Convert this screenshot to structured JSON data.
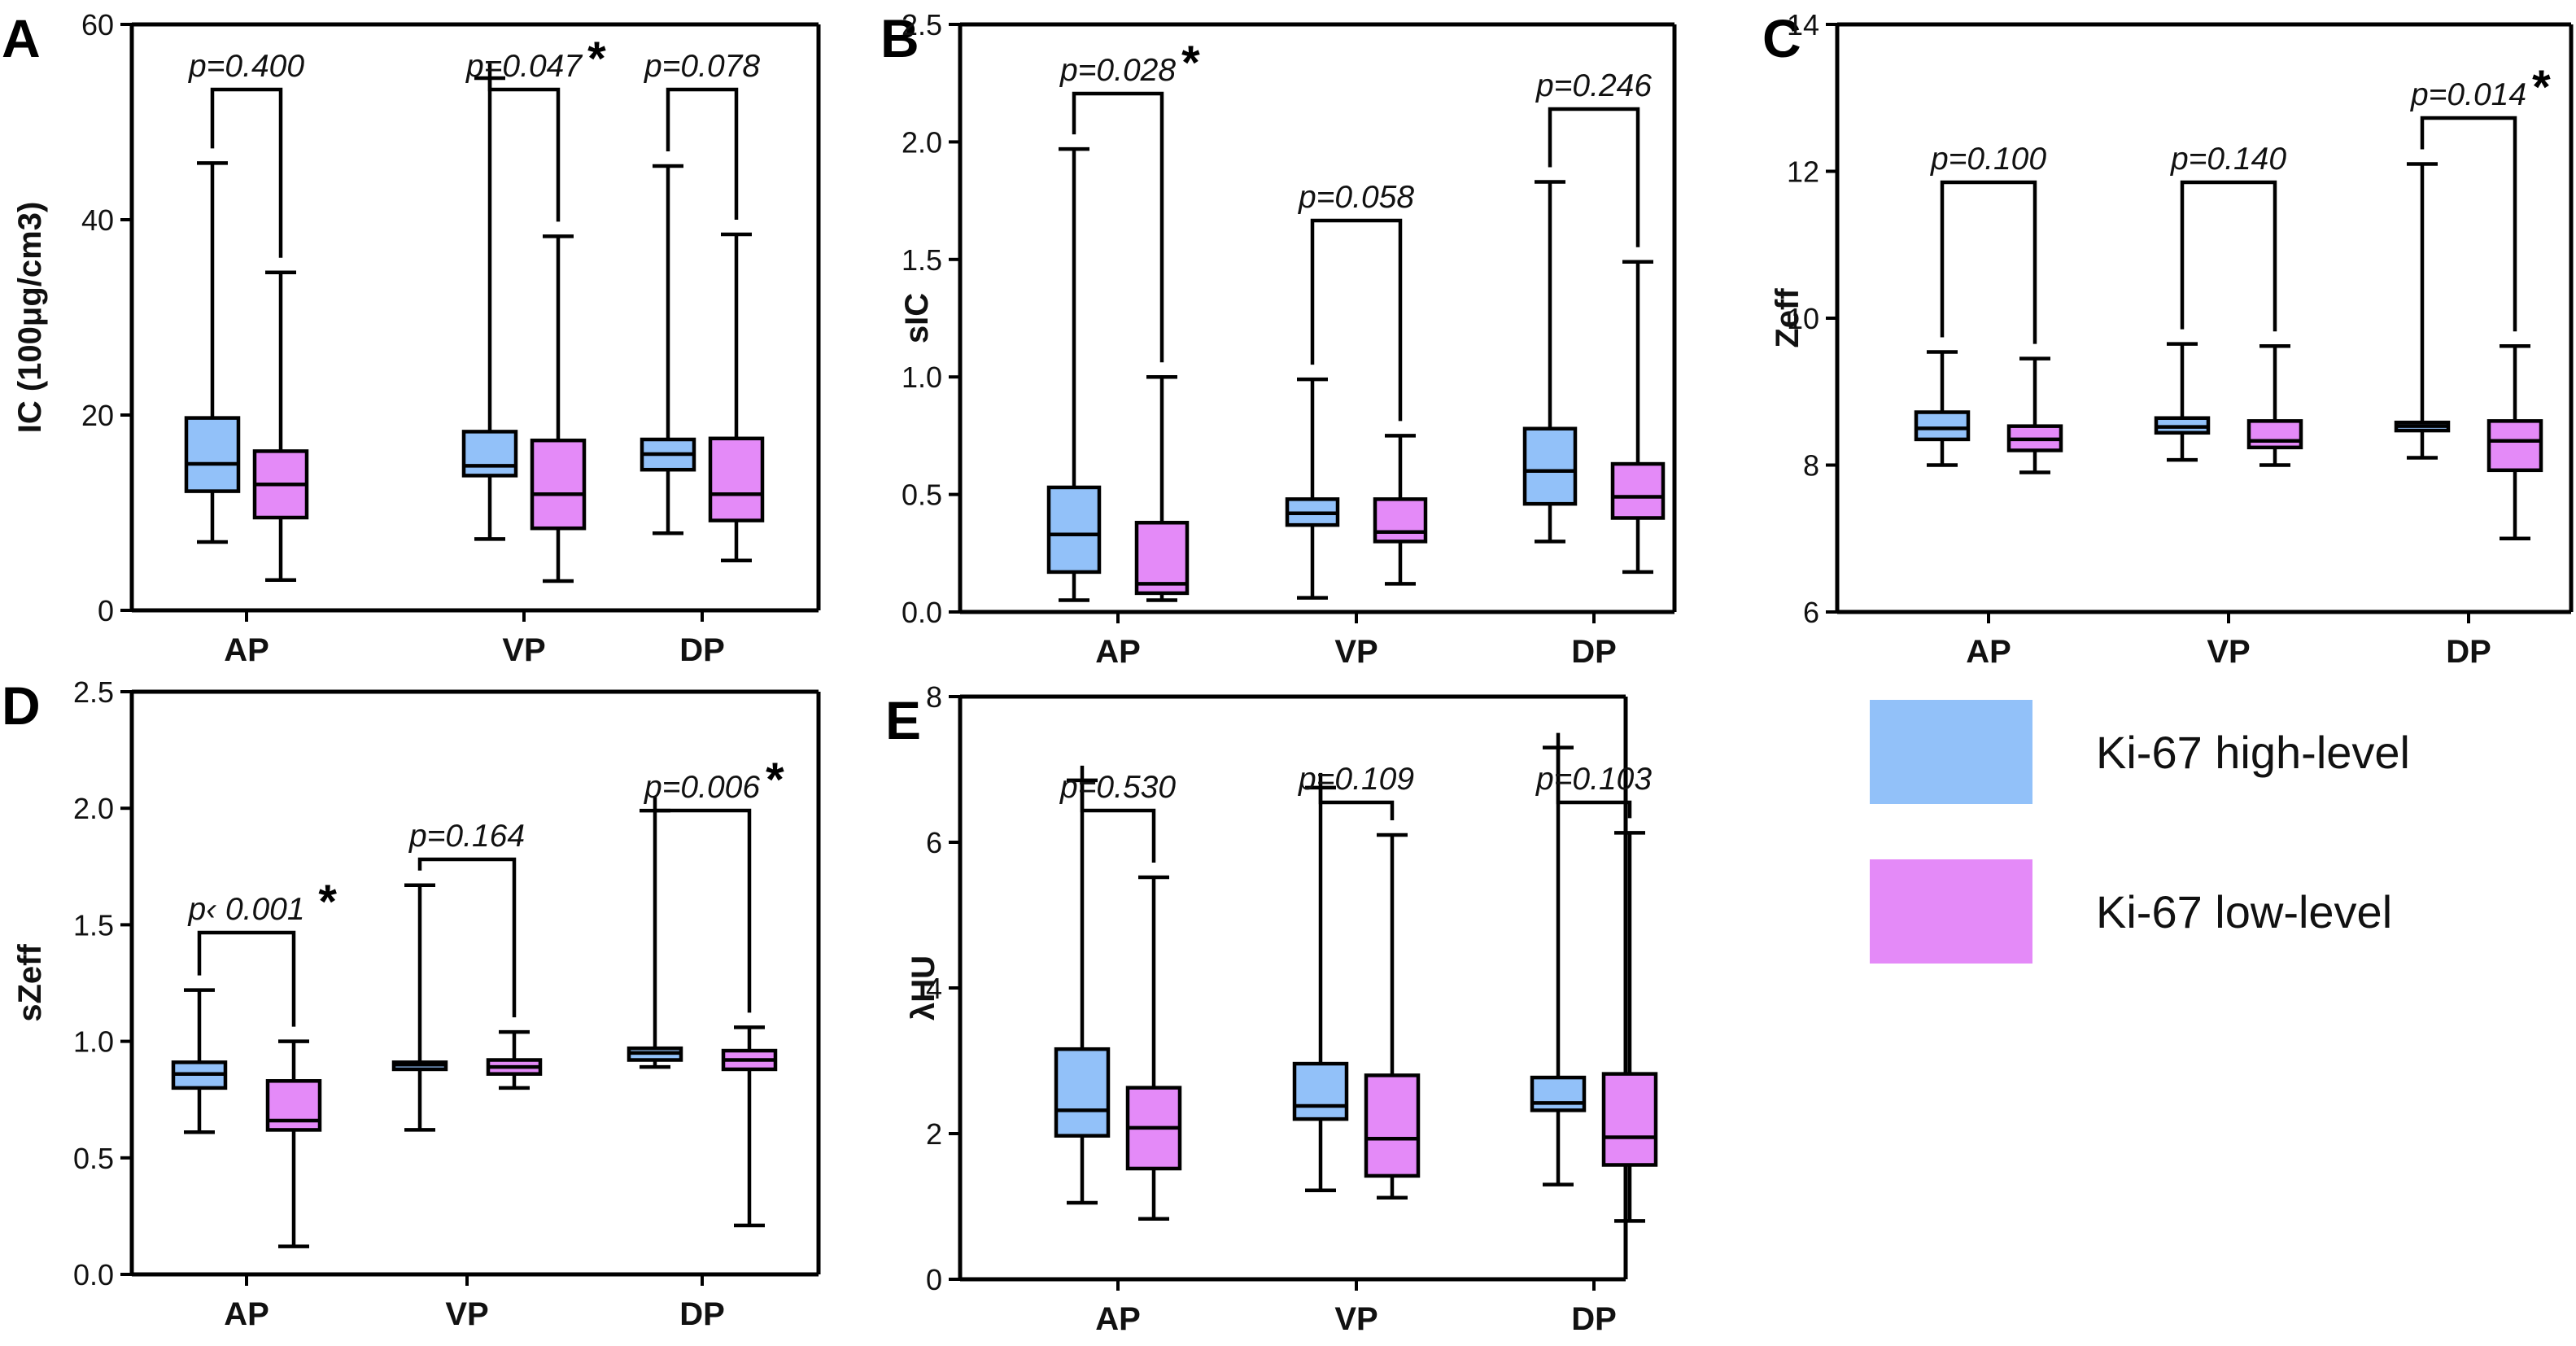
{
  "figure": {
    "legend": [
      {
        "label": "Ki-67 high-level",
        "color": "#92c1f9"
      },
      {
        "label": "Ki-67 low-level",
        "color": "#e48af8"
      }
    ],
    "groups": [
      "high",
      "low"
    ]
  },
  "chart_data": [
    {
      "panel": "A",
      "type": "box",
      "ylabel": "IC (100μg/cm3)",
      "ylim": [
        0,
        60
      ],
      "yticks": [
        0,
        20,
        40,
        60
      ],
      "ytick_labels": [
        "0",
        "20",
        "40",
        "60"
      ],
      "categories": [
        "AP",
        "VP",
        "DP"
      ],
      "series": [
        {
          "name": "Ki-67 high-level",
          "boxes": [
            {
              "min": 7,
              "q1": 12.2,
              "median": 15,
              "q3": 19.7,
              "max": 45.8
            },
            {
              "min": 7.3,
              "q1": 13.8,
              "median": 14.8,
              "q3": 18.3,
              "max": 54.5
            },
            {
              "min": 7.9,
              "q1": 14.4,
              "median": 16,
              "q3": 17.5,
              "max": 45.5
            }
          ]
        },
        {
          "name": "Ki-67 low-level",
          "boxes": [
            {
              "min": 3.1,
              "q1": 9.5,
              "median": 12.9,
              "q3": 16.3,
              "max": 34.6
            },
            {
              "min": 3,
              "q1": 8.4,
              "median": 11.9,
              "q3": 17.4,
              "max": 38.3
            },
            {
              "min": 5.1,
              "q1": 9.2,
              "median": 11.9,
              "q3": 17.6,
              "max": 38.5
            }
          ]
        }
      ],
      "pvalues": [
        {
          "text": "p=0.400",
          "sig": false,
          "star": ""
        },
        {
          "text": "p=0.047",
          "sig": true,
          "star": "*"
        },
        {
          "text": "p=0.078",
          "sig": false,
          "star": ""
        }
      ]
    },
    {
      "panel": "B",
      "type": "box",
      "ylabel": "sIC",
      "ylim": [
        0,
        2.5
      ],
      "yticks": [
        0,
        0.5,
        1,
        1.5,
        2,
        2.5
      ],
      "ytick_labels": [
        "0.0",
        "0.5",
        "1.0",
        "1.5",
        "2.0",
        "2.5"
      ],
      "categories": [
        "AP",
        "VP",
        "DP"
      ],
      "series": [
        {
          "name": "Ki-67 high-level",
          "boxes": [
            {
              "min": 0.05,
              "q1": 0.17,
              "median": 0.33,
              "q3": 0.53,
              "max": 1.97
            },
            {
              "min": 0.06,
              "q1": 0.37,
              "median": 0.42,
              "q3": 0.48,
              "max": 0.99
            },
            {
              "min": 0.3,
              "q1": 0.46,
              "median": 0.6,
              "q3": 0.78,
              "max": 1.83
            }
          ]
        },
        {
          "name": "Ki-67 low-level",
          "boxes": [
            {
              "min": 0.05,
              "q1": 0.08,
              "median": 0.12,
              "q3": 0.38,
              "max": 1.0
            },
            {
              "min": 0.12,
              "q1": 0.3,
              "median": 0.34,
              "q3": 0.48,
              "max": 0.75
            },
            {
              "min": 0.17,
              "q1": 0.4,
              "median": 0.49,
              "q3": 0.63,
              "max": 1.49
            }
          ]
        }
      ],
      "pvalues": [
        {
          "text": "p=0.028",
          "sig": true,
          "star": "*"
        },
        {
          "text": "p=0.058",
          "sig": false,
          "star": ""
        },
        {
          "text": "p=0.246",
          "sig": false,
          "star": ""
        }
      ]
    },
    {
      "panel": "C",
      "type": "box",
      "ylabel": "Zeff",
      "ylim": [
        6,
        14
      ],
      "yticks": [
        6,
        8,
        10,
        12,
        14
      ],
      "ytick_labels": [
        "6",
        "8",
        "10",
        "12",
        "14"
      ],
      "categories": [
        "AP",
        "VP",
        "DP"
      ],
      "series": [
        {
          "name": "Ki-67 high-level",
          "boxes": [
            {
              "min": 8,
              "q1": 8.35,
              "median": 8.5,
              "q3": 8.72,
              "max": 9.54
            },
            {
              "min": 8.07,
              "q1": 8.44,
              "median": 8.52,
              "q3": 8.64,
              "max": 9.65
            },
            {
              "min": 8.1,
              "q1": 8.47,
              "median": 8.53,
              "q3": 8.58,
              "max": 12.1
            }
          ]
        },
        {
          "name": "Ki-67 low-level",
          "boxes": [
            {
              "min": 7.9,
              "q1": 8.2,
              "median": 8.35,
              "q3": 8.53,
              "max": 9.45
            },
            {
              "min": 8,
              "q1": 8.24,
              "median": 8.33,
              "q3": 8.6,
              "max": 9.62
            },
            {
              "min": 7,
              "q1": 7.93,
              "median": 8.33,
              "q3": 8.6,
              "max": 9.62
            }
          ]
        }
      ],
      "pvalues": [
        {
          "text": "p=0.100",
          "sig": false,
          "star": ""
        },
        {
          "text": "p=0.140",
          "sig": false,
          "star": ""
        },
        {
          "text": "p=0.014",
          "sig": true,
          "star": "*"
        }
      ]
    },
    {
      "panel": "D",
      "type": "box",
      "ylabel": "sZeff",
      "ylim": [
        0,
        2.5
      ],
      "yticks": [
        0,
        0.5,
        1,
        1.5,
        2,
        2.5
      ],
      "ytick_labels": [
        "0.0",
        "0.5",
        "1.0",
        "1.5",
        "2.0",
        "2.5"
      ],
      "categories": [
        "AP",
        "VP",
        "DP"
      ],
      "series": [
        {
          "name": "Ki-67 high-level",
          "boxes": [
            {
              "min": 0.61,
              "q1": 0.8,
              "median": 0.86,
              "q3": 0.91,
              "max": 1.22
            },
            {
              "min": 0.62,
              "q1": 0.88,
              "median": 0.9,
              "q3": 0.91,
              "max": 1.67
            },
            {
              "min": 0.89,
              "q1": 0.92,
              "median": 0.95,
              "q3": 0.97,
              "max": 1.99
            }
          ]
        },
        {
          "name": "Ki-67 low-level",
          "boxes": [
            {
              "min": 0.12,
              "q1": 0.62,
              "median": 0.66,
              "q3": 0.83,
              "max": 1.0
            },
            {
              "min": 0.8,
              "q1": 0.86,
              "median": 0.89,
              "q3": 0.92,
              "max": 1.04
            },
            {
              "min": 0.21,
              "q1": 0.88,
              "median": 0.92,
              "q3": 0.96,
              "max": 1.06
            }
          ]
        }
      ],
      "pvalues": [
        {
          "text": "p‹ 0.001",
          "sig": true,
          "star": "*"
        },
        {
          "text": "p=0.164",
          "sig": false,
          "star": ""
        },
        {
          "text": "p=0.006",
          "sig": true,
          "star": "*"
        }
      ]
    },
    {
      "panel": "E",
      "type": "box",
      "ylabel": "λHU",
      "ylim": [
        0,
        8
      ],
      "yticks": [
        0,
        2,
        4,
        6,
        8
      ],
      "ytick_labels": [
        "0",
        "2",
        "4",
        "6",
        "8"
      ],
      "categories": [
        "AP",
        "VP",
        "DP"
      ],
      "series": [
        {
          "name": "Ki-67 high-level",
          "boxes": [
            {
              "min": 1.05,
              "q1": 1.97,
              "median": 2.32,
              "q3": 3.16,
              "max": 6.85
            },
            {
              "min": 1.22,
              "q1": 2.2,
              "median": 2.38,
              "q3": 2.96,
              "max": 6.75
            },
            {
              "min": 1.3,
              "q1": 2.32,
              "median": 2.42,
              "q3": 2.77,
              "max": 7.3
            }
          ]
        },
        {
          "name": "Ki-67 low-level",
          "boxes": [
            {
              "min": 0.83,
              "q1": 1.52,
              "median": 2.08,
              "q3": 2.63,
              "max": 5.52
            },
            {
              "min": 1.12,
              "q1": 1.42,
              "median": 1.93,
              "q3": 2.8,
              "max": 6.1
            },
            {
              "min": 0.8,
              "q1": 1.57,
              "median": 1.95,
              "q3": 2.82,
              "max": 6.13
            }
          ]
        }
      ],
      "pvalues": [
        {
          "text": "p=0.530",
          "sig": false,
          "star": ""
        },
        {
          "text": "p=0.109",
          "sig": false,
          "star": ""
        },
        {
          "text": "p=0.103",
          "sig": false,
          "star": ""
        }
      ]
    }
  ]
}
